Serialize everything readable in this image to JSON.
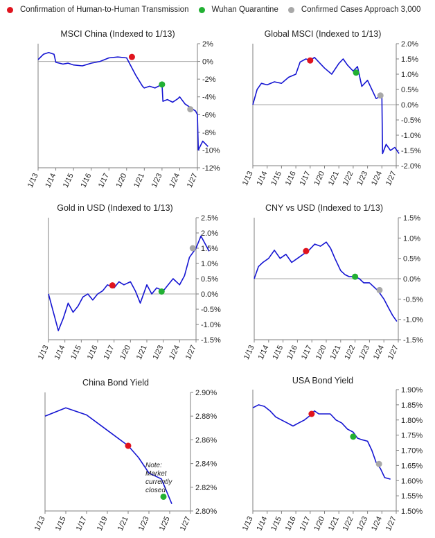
{
  "legend": {
    "items": [
      {
        "label": "Confirmation of Human-to-Human Transmission",
        "color": "#e0141e"
      },
      {
        "label": "Wuhan Quarantine",
        "color": "#22b033"
      },
      {
        "label": "Confirmed Cases Approach 3,000",
        "color": "#a8a8a8"
      }
    ]
  },
  "colors": {
    "line": "#1414d2",
    "axis": "#7f7f7f",
    "zero_line": "#a6a6a6"
  },
  "chart_data": [
    {
      "type": "line",
      "title": "MSCI China (Indexed to 1/13)",
      "xlabels": [
        "1/13",
        "1/14",
        "1/15",
        "1/16",
        "1/17",
        "1/20",
        "1/21",
        "1/23",
        "1/24",
        "1/27"
      ],
      "yticks": [
        "2%",
        "0%",
        "-2%",
        "-4%",
        "-6%",
        "-8%",
        "-10%",
        "-12%"
      ],
      "ylim": [
        -12,
        2
      ],
      "unit": "%",
      "series_x": [
        0,
        0.3,
        0.6,
        0.9,
        1.0,
        1.4,
        1.7,
        2.0,
        2.5,
        3.0,
        3.5,
        4.0,
        4.5,
        5.0,
        5.5,
        5.9,
        6.0,
        6.3,
        6.6,
        7.0,
        7.05,
        7.3,
        7.6,
        7.9,
        8.0,
        8.3,
        8.6,
        8.9,
        9.0,
        9.05,
        9.3,
        9.6
      ],
      "series_y": [
        0.2,
        0.8,
        1.0,
        0.8,
        -0.1,
        -0.3,
        -0.2,
        -0.4,
        -0.5,
        -0.2,
        0.0,
        0.4,
        0.5,
        0.4,
        -1.5,
        -2.8,
        -3.0,
        -2.8,
        -3.0,
        -2.6,
        -4.5,
        -4.3,
        -4.6,
        -4.2,
        -4.0,
        -4.8,
        -5.2,
        -5.6,
        -6.0,
        -10.0,
        -9.0,
        -9.6
      ],
      "events": [
        {
          "x": 5.3,
          "y": 0.5,
          "event": 0
        },
        {
          "x": 7.0,
          "y": -2.6,
          "event": 1
        },
        {
          "x": 8.6,
          "y": -5.4,
          "event": 2
        }
      ],
      "annotation": ""
    },
    {
      "type": "line",
      "title": "Global MSCI (Indexed to 1/13)",
      "xlabels": [
        "1/13",
        "1/14",
        "1/15",
        "1/16",
        "1/17",
        "1/20",
        "1/21",
        "1/22",
        "1/23",
        "1/24",
        "1/27"
      ],
      "yticks": [
        "2.0%",
        "1.5%",
        "1.0%",
        "0.5%",
        "0.0%",
        "-0.5%",
        "-1.0%",
        "-1.5%",
        "-2.0%"
      ],
      "ylim": [
        -2.0,
        2.0
      ],
      "unit": "%",
      "series_x": [
        0,
        0.3,
        0.6,
        1.0,
        1.5,
        2.0,
        2.5,
        3.0,
        3.3,
        3.7,
        4.0,
        4.3,
        4.6,
        5.0,
        5.5,
        6.0,
        6.3,
        6.6,
        7.0,
        7.3,
        7.6,
        8.0,
        8.3,
        8.6,
        9.0,
        9.05,
        9.3,
        9.6,
        9.9,
        10.2
      ],
      "series_y": [
        0.0,
        0.5,
        0.7,
        0.65,
        0.75,
        0.7,
        0.9,
        1.0,
        1.4,
        1.5,
        1.45,
        1.55,
        1.4,
        1.2,
        1.0,
        1.35,
        1.5,
        1.3,
        1.1,
        1.25,
        0.6,
        0.8,
        0.5,
        0.2,
        0.3,
        -1.6,
        -1.3,
        -1.5,
        -1.4,
        -1.6
      ],
      "events": [
        {
          "x": 4.0,
          "y": 1.45,
          "event": 0
        },
        {
          "x": 7.2,
          "y": 1.05,
          "event": 1
        },
        {
          "x": 8.9,
          "y": 0.3,
          "event": 2
        }
      ],
      "annotation": ""
    },
    {
      "type": "line",
      "title": "Gold in USD (Indexed to 1/13)",
      "xlabels": [
        "1/13",
        "1/14",
        "1/15",
        "1/16",
        "1/17",
        "1/20",
        "1/21",
        "1/23",
        "1/24",
        "1/27"
      ],
      "yticks": [
        "2.5%",
        "2.0%",
        "1.5%",
        "1.0%",
        "0.5%",
        "0.0%",
        "-0.5%",
        "-1.0%",
        "-1.5%"
      ],
      "ylim": [
        -1.5,
        2.5
      ],
      "unit": "%",
      "series_x": [
        0,
        0.3,
        0.6,
        0.9,
        1.2,
        1.5,
        1.8,
        2.1,
        2.4,
        2.7,
        3.0,
        3.3,
        3.6,
        4.0,
        4.3,
        4.6,
        5.0,
        5.3,
        5.6,
        6.0,
        6.3,
        6.6,
        7.0,
        7.3,
        7.6,
        8.0,
        8.3,
        8.6,
        9.0,
        9.3,
        9.6,
        9.8
      ],
      "series_y": [
        0.0,
        -0.6,
        -1.2,
        -0.8,
        -0.3,
        -0.6,
        -0.4,
        -0.1,
        0.0,
        -0.2,
        0.0,
        0.1,
        0.3,
        0.2,
        0.4,
        0.3,
        0.4,
        0.1,
        -0.3,
        0.3,
        0.0,
        0.2,
        0.1,
        0.3,
        0.5,
        0.3,
        0.6,
        1.2,
        1.5,
        1.9,
        1.6,
        1.4
      ],
      "events": [
        {
          "x": 3.9,
          "y": 0.28,
          "event": 0
        },
        {
          "x": 6.9,
          "y": 0.08,
          "event": 1
        },
        {
          "x": 8.8,
          "y": 1.5,
          "event": 2
        }
      ],
      "annotation": ""
    },
    {
      "type": "line",
      "title": "CNY vs USD (Indexed to 1/13)",
      "xlabels": [
        "1/13",
        "1/14",
        "1/15",
        "1/16",
        "1/17",
        "1/20",
        "1/21",
        "1/22",
        "1/23",
        "1/24",
        "1/27"
      ],
      "yticks": [
        "1.5%",
        "1.0%",
        "0.5%",
        "0.0%",
        "-0.5%",
        "-1.0%",
        "-1.5%"
      ],
      "ylim": [
        -1.5,
        1.5
      ],
      "unit": "%",
      "series_x": [
        0,
        0.3,
        0.6,
        1.0,
        1.4,
        1.8,
        2.2,
        2.6,
        3.0,
        3.4,
        3.8,
        4.2,
        4.6,
        5.0,
        5.3,
        5.6,
        6.0,
        6.3,
        6.6,
        7.0,
        7.3,
        7.6,
        8.0,
        8.3,
        8.6,
        9.0,
        9.3,
        9.6,
        9.9
      ],
      "series_y": [
        0.0,
        0.3,
        0.4,
        0.5,
        0.7,
        0.5,
        0.6,
        0.4,
        0.5,
        0.6,
        0.7,
        0.85,
        0.8,
        0.9,
        0.75,
        0.5,
        0.2,
        0.1,
        0.05,
        0.05,
        0.0,
        -0.1,
        -0.1,
        -0.2,
        -0.3,
        -0.5,
        -0.7,
        -0.9,
        -1.05
      ],
      "events": [
        {
          "x": 3.6,
          "y": 0.68,
          "event": 0
        },
        {
          "x": 7.0,
          "y": 0.05,
          "event": 1
        },
        {
          "x": 8.7,
          "y": -0.28,
          "event": 2
        }
      ],
      "annotation": ""
    },
    {
      "type": "line",
      "title": "China Bond Yield",
      "xlabels": [
        "1/13",
        "1/15",
        "1/17",
        "1/19",
        "1/21",
        "1/23",
        "1/25",
        "1/27"
      ],
      "yticks": [
        "2.90%",
        "2.88%",
        "2.86%",
        "2.84%",
        "2.82%",
        "2.80%"
      ],
      "ylim": [
        2.8,
        2.9
      ],
      "unit": "%",
      "series_x": [
        0,
        1.0,
        2.0,
        3.0,
        4.0,
        4.5,
        5.0,
        5.6,
        6.1
      ],
      "series_y": [
        2.88,
        2.887,
        2.881,
        2.868,
        2.855,
        2.845,
        2.832,
        2.827,
        2.806
      ],
      "events": [
        {
          "x": 4.0,
          "y": 2.855,
          "event": 0
        },
        {
          "x": 5.7,
          "y": 2.812,
          "event": 1
        }
      ],
      "annotation": "Note:\nMarket\ncurrently\nclosed"
    },
    {
      "type": "line",
      "title": "USA Bond Yield",
      "xlabels": [
        "1/13",
        "1/14",
        "1/15",
        "1/16",
        "1/17",
        "1/20",
        "1/21",
        "1/22",
        "1/23",
        "1/24",
        "1/27"
      ],
      "yticks": [
        "1.90%",
        "1.85%",
        "1.80%",
        "1.75%",
        "1.70%",
        "1.65%",
        "1.60%",
        "1.55%",
        "1.50%"
      ],
      "ylim": [
        1.5,
        1.9
      ],
      "unit": "%",
      "series_x": [
        0,
        0.4,
        0.8,
        1.2,
        1.6,
        2.0,
        2.4,
        2.8,
        3.2,
        3.6,
        4.0,
        4.3,
        4.6,
        5.0,
        5.4,
        5.8,
        6.2,
        6.6,
        7.0,
        7.3,
        7.6,
        8.0,
        8.3,
        8.6,
        8.9,
        9.2,
        9.6
      ],
      "series_y": [
        1.84,
        1.85,
        1.845,
        1.83,
        1.81,
        1.8,
        1.79,
        1.78,
        1.79,
        1.8,
        1.815,
        1.83,
        1.82,
        1.82,
        1.82,
        1.8,
        1.79,
        1.77,
        1.76,
        1.74,
        1.735,
        1.73,
        1.7,
        1.66,
        1.64,
        1.61,
        1.605
      ],
      "events": [
        {
          "x": 4.1,
          "y": 1.82,
          "event": 0
        },
        {
          "x": 7.0,
          "y": 1.745,
          "event": 1
        },
        {
          "x": 8.8,
          "y": 1.655,
          "event": 2
        }
      ],
      "annotation": ""
    }
  ]
}
